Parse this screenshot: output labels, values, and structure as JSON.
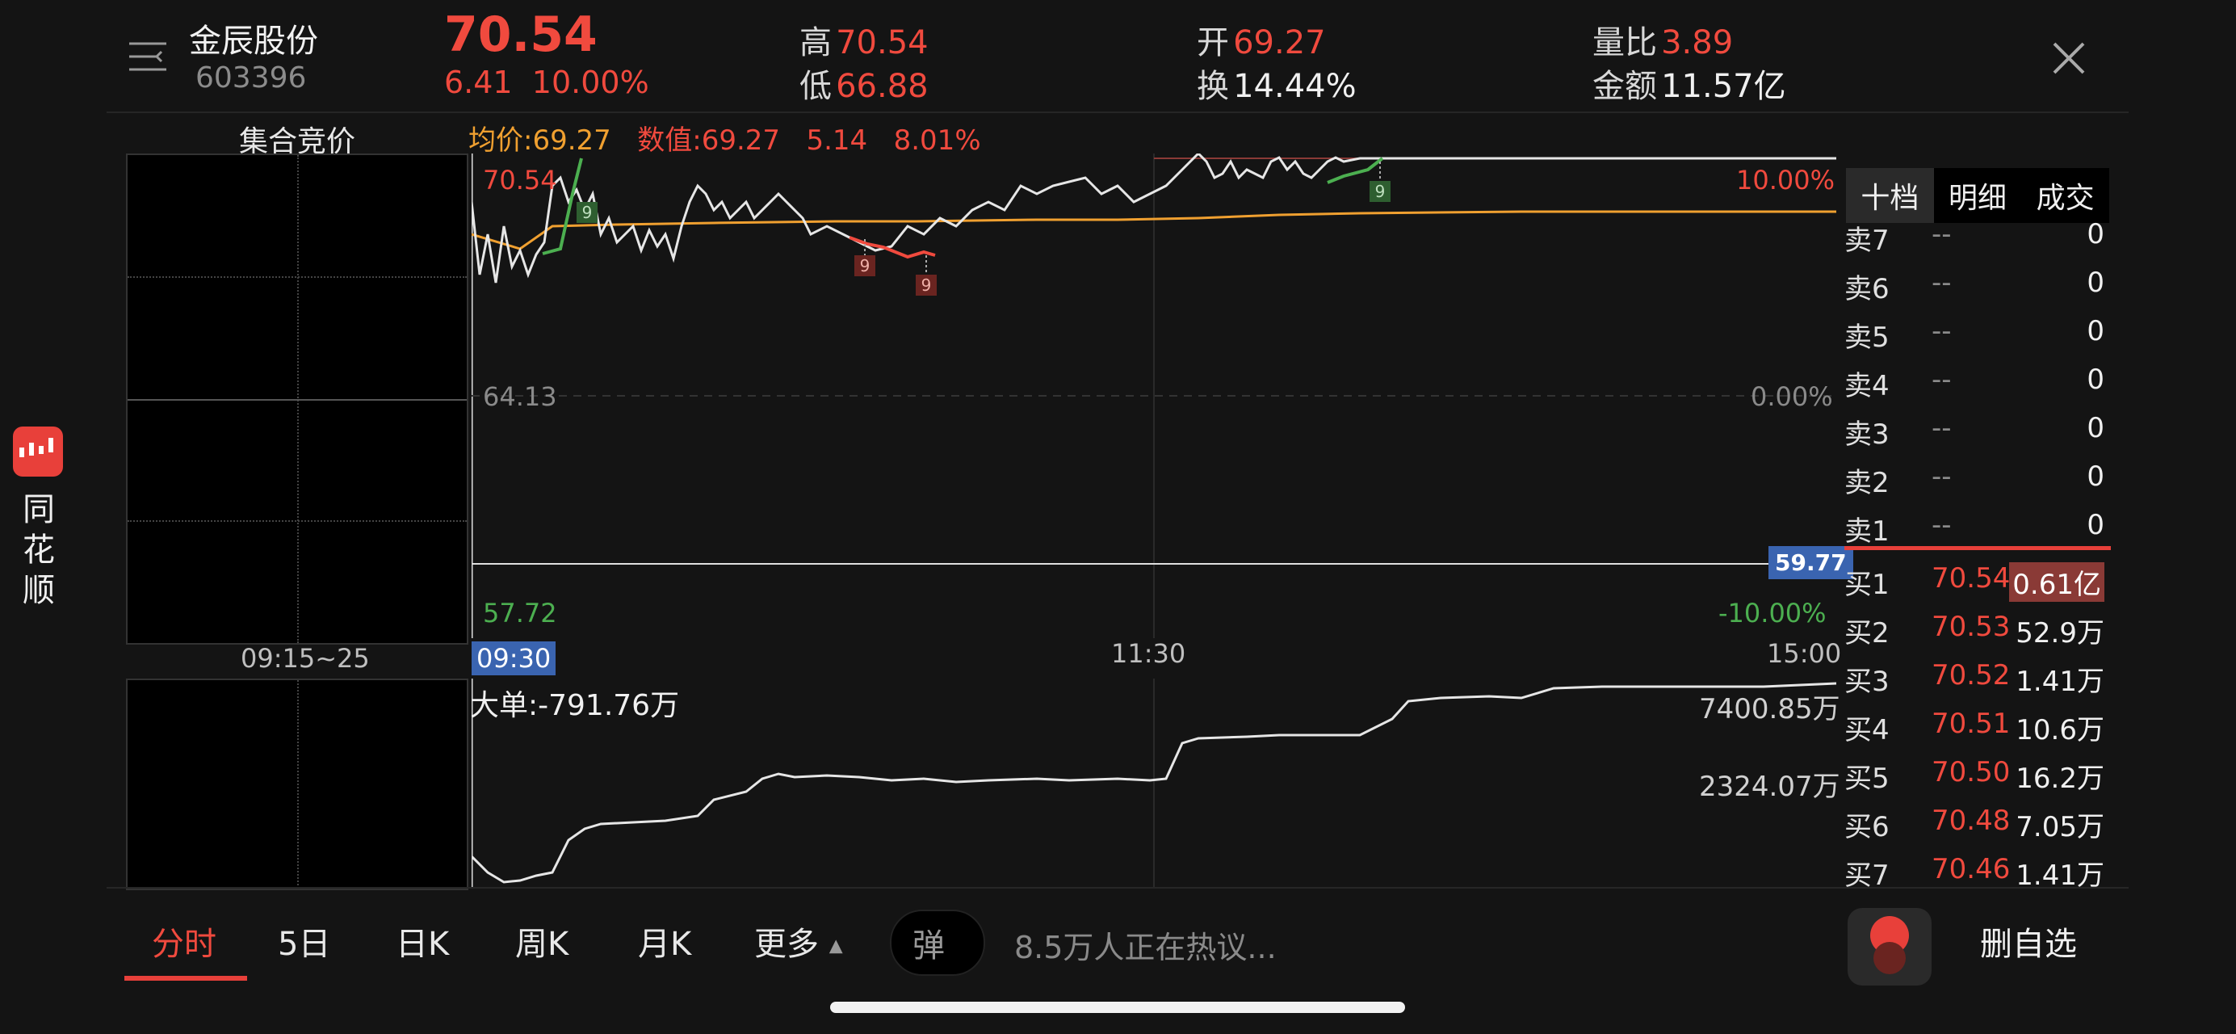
{
  "header": {
    "stock_name": "金辰股份",
    "stock_code": "603396",
    "price": "70.54",
    "change": "6.41",
    "change_pct": "10.00%",
    "high_label": "高",
    "high": "70.54",
    "low_label": "低",
    "low": "66.88",
    "open_label": "开",
    "open": "69.27",
    "turnover_label": "换",
    "turnover": "14.44%",
    "vol_ratio_label": "量比",
    "vol_ratio": "3.89",
    "amount_label": "金额",
    "amount": "11.57亿"
  },
  "side_app": {
    "name": "同花顺"
  },
  "chart": {
    "auction_label": "集合竞价",
    "auction_time": "09:15~25",
    "avg_price_text": "均价:69.27",
    "value_text": "数值:69.27",
    "value_change": "5.14",
    "value_pct": "8.01%",
    "y_top": "70.54",
    "y_mid": "64.13",
    "y_bottom": "57.72",
    "pct_top": "10.00%",
    "pct_mid": "0.00%",
    "pct_bottom": "-10.00%",
    "cursor_price": "59.77",
    "marker_label": "9",
    "time_start": "09:30",
    "time_mid": "11:30",
    "time_end": "15:00",
    "big_order_text": "大单:-791.76万",
    "vol_top": "7400.85万",
    "vol_mid": "2324.07万"
  },
  "orderbook": {
    "tabs": [
      "十档",
      "明细",
      "成交"
    ],
    "asks": [
      {
        "label": "卖7",
        "price": "--",
        "vol": "0"
      },
      {
        "label": "卖6",
        "price": "--",
        "vol": "0"
      },
      {
        "label": "卖5",
        "price": "--",
        "vol": "0"
      },
      {
        "label": "卖4",
        "price": "--",
        "vol": "0"
      },
      {
        "label": "卖3",
        "price": "--",
        "vol": "0"
      },
      {
        "label": "卖2",
        "price": "--",
        "vol": "0"
      },
      {
        "label": "卖1",
        "price": "--",
        "vol": "0"
      }
    ],
    "bids": [
      {
        "label": "买1",
        "price": "70.54",
        "vol": "0.61亿"
      },
      {
        "label": "买2",
        "price": "70.53",
        "vol": "52.9万"
      },
      {
        "label": "买3",
        "price": "70.52",
        "vol": "1.41万"
      },
      {
        "label": "买4",
        "price": "70.51",
        "vol": "10.6万"
      },
      {
        "label": "买5",
        "price": "70.50",
        "vol": "16.2万"
      },
      {
        "label": "买6",
        "price": "70.48",
        "vol": "7.05万"
      },
      {
        "label": "买7",
        "price": "70.46",
        "vol": "1.41万"
      }
    ]
  },
  "bottom": {
    "tabs": [
      "分时",
      "5日",
      "日K",
      "周K",
      "月K",
      "更多"
    ],
    "danmu_glyph": "弹",
    "discuss_text": "8.5万人正在热议...",
    "remove_fav": "删自选"
  },
  "colors": {
    "up": "#f04a3e",
    "down": "#4caf50",
    "avg": "#f0a030",
    "bg": "#141414"
  }
}
